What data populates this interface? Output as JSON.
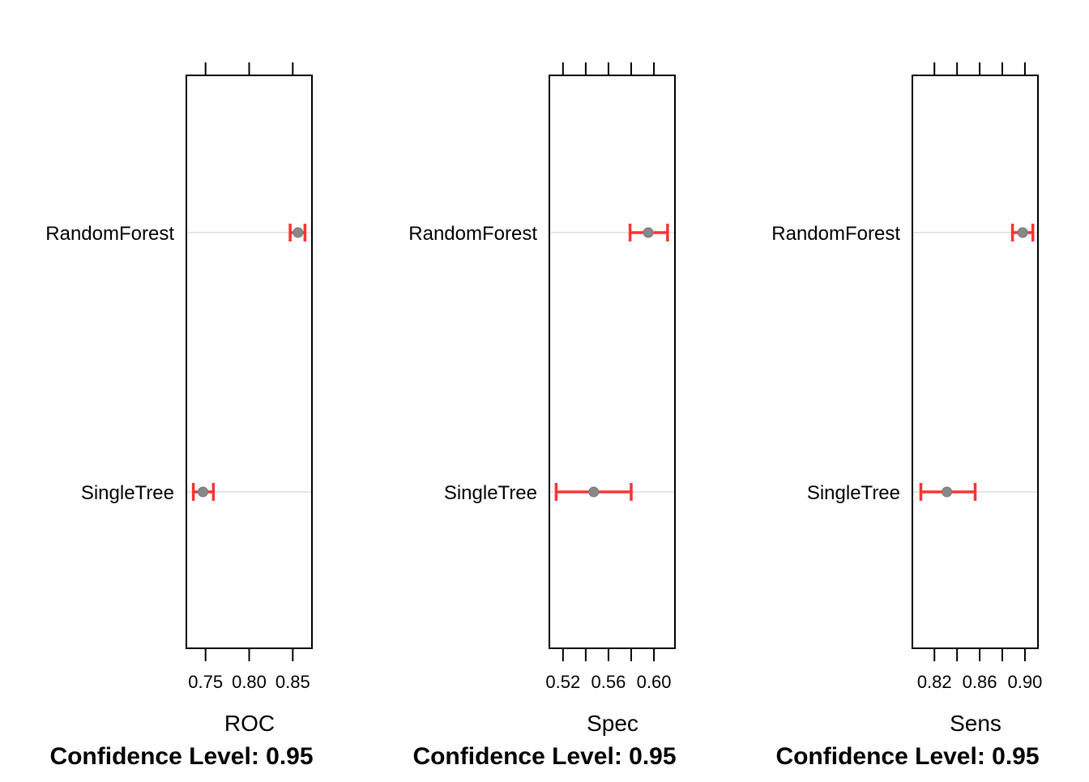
{
  "chart_data": [
    {
      "type": "dotplot-ci",
      "xlabel": "ROC",
      "subtitle": "Confidence Level: 0.95",
      "xlim": [
        0.728,
        0.872
      ],
      "ticks": [
        0.75,
        0.8,
        0.85
      ],
      "tick_labels": [
        "0.75",
        "0.80",
        "0.85"
      ],
      "top_ticks": [
        0.75,
        0.8,
        0.85
      ],
      "categories": [
        "RandomForest",
        "SingleTree"
      ],
      "points": [
        {
          "category": "RandomForest",
          "estimate": 0.856,
          "lower": 0.847,
          "upper": 0.864
        },
        {
          "category": "SingleTree",
          "estimate": 0.747,
          "lower": 0.736,
          "upper": 0.759
        }
      ]
    },
    {
      "type": "dotplot-ci",
      "xlabel": "Spec",
      "subtitle": "Confidence Level: 0.95",
      "xlim": [
        0.508,
        0.6185
      ],
      "ticks": [
        0.52,
        0.56,
        0.6
      ],
      "tick_labels": [
        "0.52",
        "0.56",
        "0.60"
      ],
      "top_ticks": [
        0.52,
        0.54,
        0.56,
        0.58,
        0.6
      ],
      "minor_bottom_ticks": [
        0.54,
        0.58
      ],
      "categories": [
        "RandomForest",
        "SingleTree"
      ],
      "points": [
        {
          "category": "RandomForest",
          "estimate": 0.595,
          "lower": 0.579,
          "upper": 0.612
        },
        {
          "category": "SingleTree",
          "estimate": 0.547,
          "lower": 0.514,
          "upper": 0.58
        }
      ]
    },
    {
      "type": "dotplot-ci",
      "xlabel": "Sens",
      "subtitle": "Confidence Level: 0.95",
      "xlim": [
        0.8005,
        0.9115
      ],
      "ticks": [
        0.82,
        0.86,
        0.9
      ],
      "tick_labels": [
        "0.82",
        "0.86",
        "0.90"
      ],
      "top_ticks": [
        0.82,
        0.84,
        0.86,
        0.88,
        0.9
      ],
      "minor_bottom_ticks": [
        0.84,
        0.88
      ],
      "categories": [
        "RandomForest",
        "SingleTree"
      ],
      "points": [
        {
          "category": "RandomForest",
          "estimate": 0.898,
          "lower": 0.889,
          "upper": 0.907
        },
        {
          "category": "SingleTree",
          "estimate": 0.831,
          "lower": 0.808,
          "upper": 0.856
        }
      ]
    }
  ],
  "colors": {
    "ci": "#ff3333",
    "point": "#888888",
    "ref_line": "#e6e6e6",
    "frame": "#000000"
  }
}
